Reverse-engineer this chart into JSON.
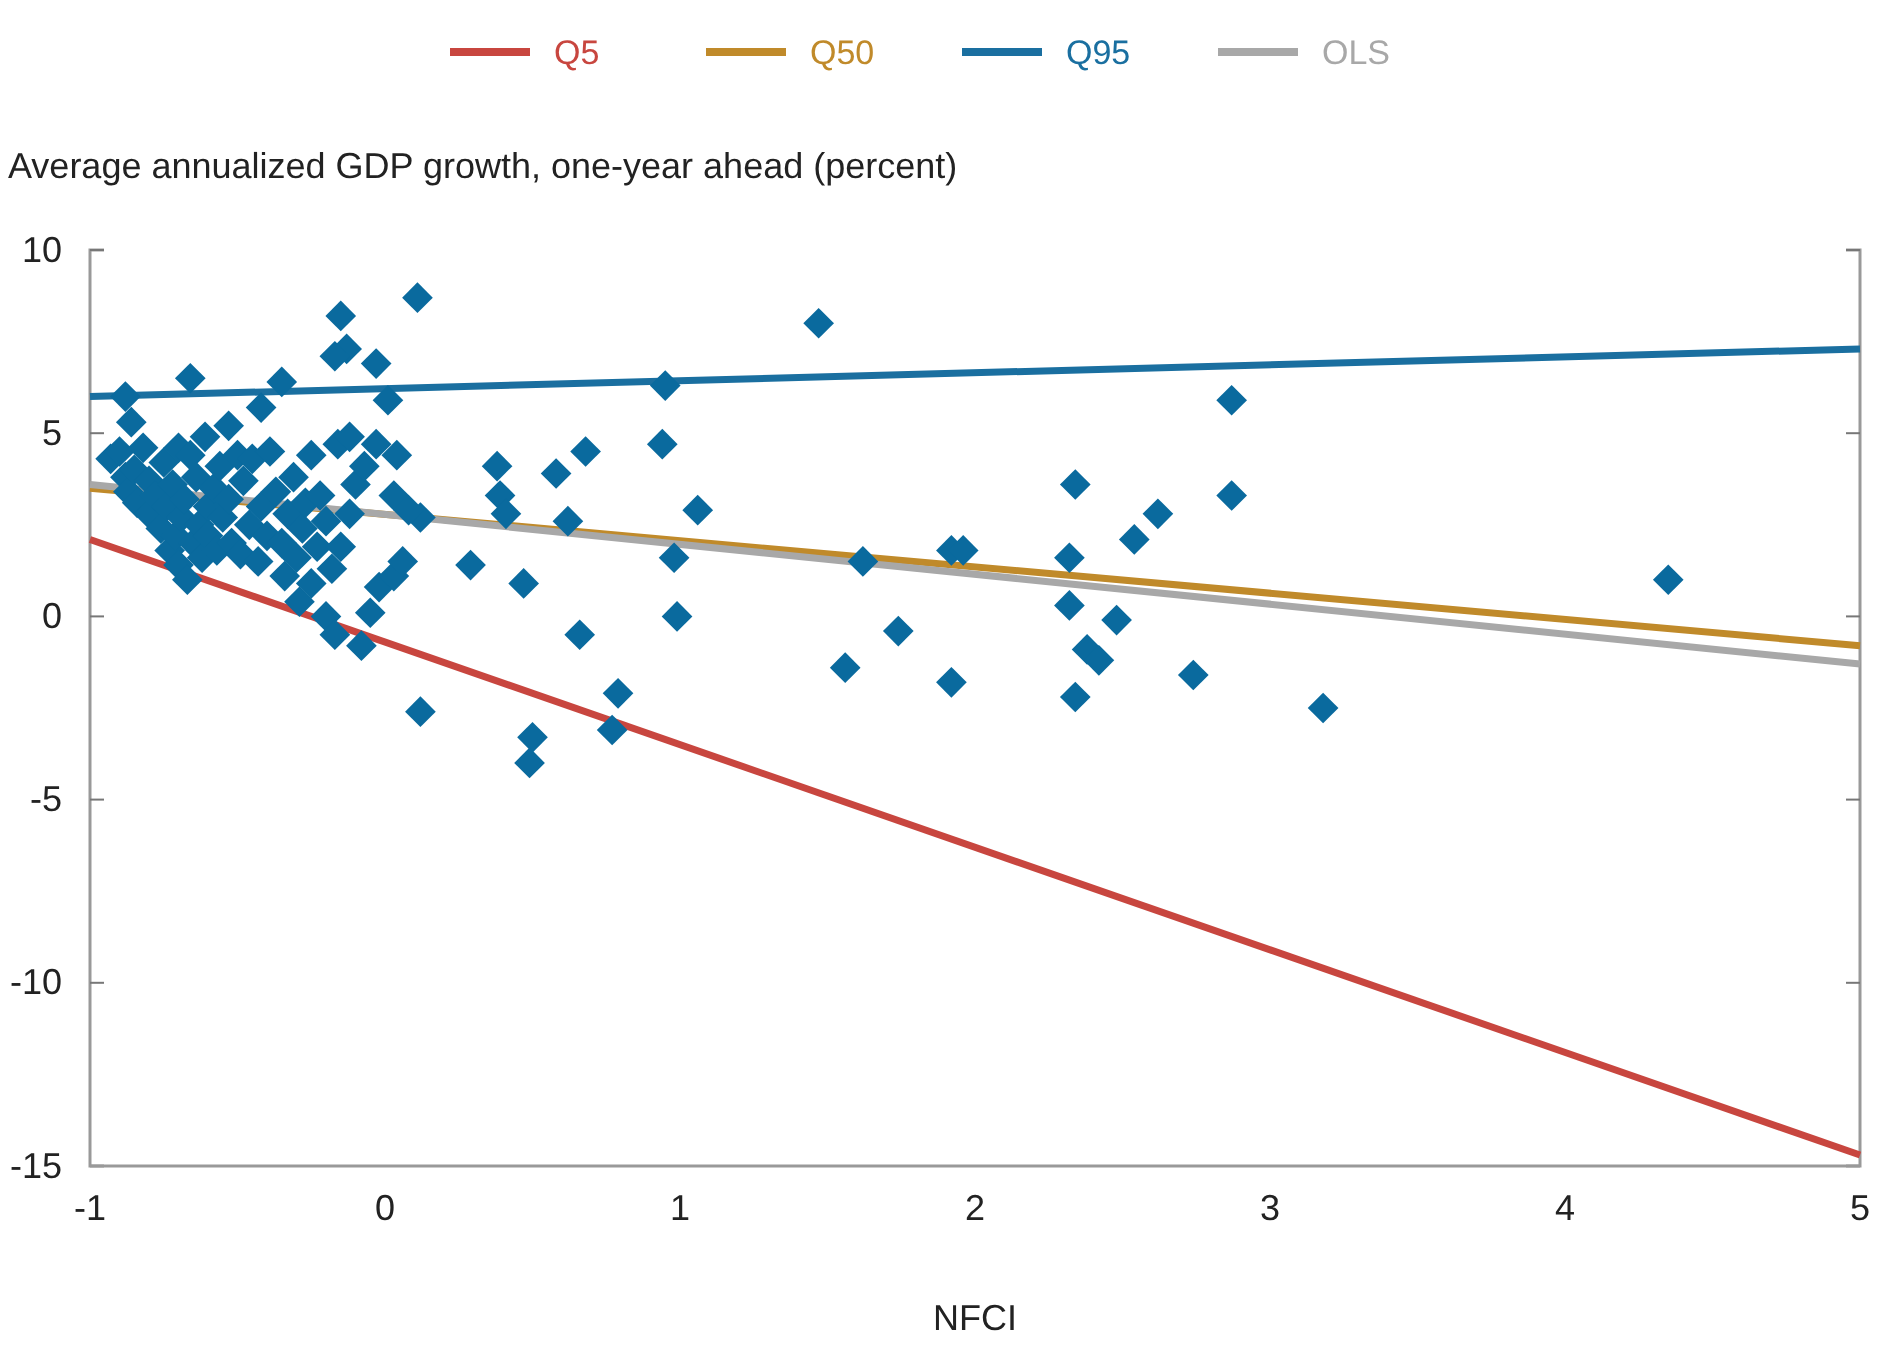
{
  "chart_data": {
    "type": "scatter",
    "ylabel": "Average annualized GDP growth, one-year ahead (percent)",
    "xlabel": "NFCI",
    "xlim": [
      -1,
      5
    ],
    "xticks": [
      -1,
      0,
      1,
      2,
      3,
      4,
      5
    ],
    "ylim": [
      -15,
      10
    ],
    "yticks": [
      -15,
      -10,
      -5,
      0,
      5,
      10
    ],
    "grid": false,
    "legend": "top",
    "marker": "diamond",
    "series": [
      {
        "type": "line",
        "marker": "none",
        "name": "Q5",
        "color": "#c8463f",
        "x": [
          -1,
          5
        ],
        "values": [
          2.1,
          -14.7
        ]
      },
      {
        "type": "line",
        "marker": "none",
        "name": "Q50",
        "color": "#c08a2a",
        "x": [
          -1,
          5
        ],
        "values": [
          3.5,
          -0.8
        ]
      },
      {
        "type": "line",
        "marker": "none",
        "name": "Q95",
        "color": "#1a6fa0",
        "x": [
          -1,
          5
        ],
        "values": [
          6.0,
          7.3
        ]
      },
      {
        "type": "line",
        "marker": "none",
        "name": "OLS",
        "color": "#a8a8a8",
        "x": [
          -1,
          5
        ],
        "values": [
          3.6,
          -1.3
        ]
      },
      {
        "color": "#0a6a9e",
        "x": [
          1.47,
          0.95,
          2.87,
          0.38,
          0.58,
          0.68,
          0.94,
          0.39,
          0.41,
          0.62,
          1.06,
          0.29,
          0.47,
          0.98,
          0.99,
          0.66,
          0.79,
          0.77,
          0.5,
          0.49,
          1.62,
          1.56,
          1.74,
          1.92,
          1.96,
          1.92,
          2.34,
          2.32,
          2.32,
          2.48,
          2.38,
          2.42,
          2.34,
          2.54,
          2.62,
          2.87,
          2.74,
          4.35,
          3.18,
          0.11,
          -0.15,
          -0.13,
          -0.17,
          -0.03,
          -0.66,
          -0.35,
          -0.88,
          0.01,
          -0.42,
          -0.86,
          -0.53,
          -0.93,
          -0.9,
          -0.88,
          -0.87,
          -0.85,
          -0.84,
          -0.82,
          -0.8,
          -0.8,
          -0.78,
          -0.76,
          -0.75,
          -0.74,
          -0.73,
          -0.72,
          -0.71,
          -0.7,
          -0.7,
          -0.69,
          -0.68,
          -0.67,
          -0.66,
          -0.65,
          -0.64,
          -0.63,
          -0.62,
          -0.61,
          -0.6,
          -0.6,
          -0.58,
          -0.57,
          -0.56,
          -0.55,
          -0.53,
          -0.52,
          -0.5,
          -0.49,
          -0.48,
          -0.46,
          -0.45,
          -0.43,
          -0.42,
          -0.4,
          -0.39,
          -0.37,
          -0.35,
          -0.34,
          -0.33,
          -0.31,
          -0.3,
          -0.29,
          -0.28,
          -0.27,
          -0.25,
          -0.25,
          -0.23,
          -0.22,
          -0.2,
          -0.2,
          -0.18,
          -0.17,
          -0.16,
          -0.15,
          -0.12,
          -0.1,
          -0.08,
          -0.07,
          -0.05,
          -0.02,
          0.03,
          0.06,
          0.12,
          0.03,
          -0.03,
          0.04,
          -0.12,
          0.08,
          0.12
        ],
        "values": [
          8.0,
          6.3,
          5.9,
          4.1,
          3.9,
          4.5,
          4.7,
          3.3,
          2.8,
          2.6,
          2.9,
          1.4,
          0.9,
          1.6,
          0.0,
          -0.5,
          -2.1,
          -3.1,
          -3.3,
          -4.0,
          1.5,
          -1.4,
          -0.4,
          1.8,
          1.8,
          -1.8,
          3.6,
          1.6,
          0.3,
          -0.1,
          -0.9,
          -1.2,
          -2.2,
          2.1,
          2.8,
          3.3,
          -1.6,
          1.0,
          -2.5,
          8.7,
          8.2,
          7.3,
          7.1,
          6.9,
          6.5,
          6.4,
          6.0,
          5.9,
          5.7,
          5.3,
          5.2,
          4.3,
          4.5,
          3.8,
          3.4,
          4.0,
          3.1,
          4.6,
          3.7,
          2.8,
          3.3,
          2.4,
          4.2,
          3.0,
          1.8,
          3.6,
          2.2,
          4.6,
          1.4,
          2.7,
          3.2,
          1.0,
          4.4,
          2.0,
          3.8,
          2.5,
          1.6,
          4.9,
          3.0,
          2.2,
          3.5,
          1.8,
          4.1,
          2.7,
          3.2,
          2.0,
          4.4,
          1.7,
          3.7,
          2.5,
          4.3,
          1.5,
          3.0,
          2.2,
          4.5,
          3.4,
          2.0,
          1.1,
          2.8,
          3.8,
          1.6,
          0.4,
          2.4,
          3.1,
          4.4,
          0.9,
          1.9,
          3.3,
          2.6,
          0.0,
          1.3,
          -0.5,
          4.7,
          1.9,
          2.8,
          3.6,
          -0.8,
          4.1,
          0.1,
          0.8,
          1.1,
          1.5,
          2.7,
          3.3,
          4.7,
          4.4,
          4.9,
          2.9,
          -2.6
        ]
      }
    ]
  }
}
